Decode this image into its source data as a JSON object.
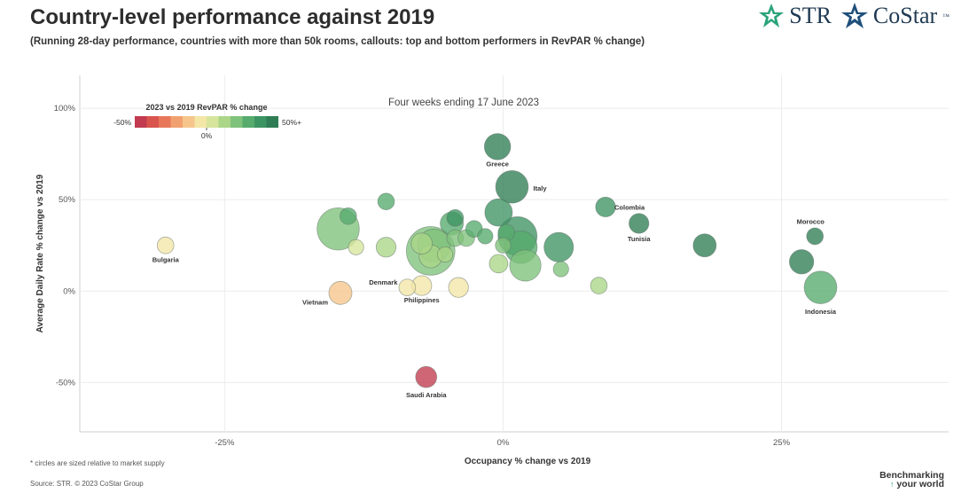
{
  "header": {
    "title": "Country-level performance against 2019",
    "subtitle": "(Running 28-day performance, countries with more than 50k rooms, callouts: top and bottom performers in RevPAR % change)"
  },
  "logos": {
    "str": "STR",
    "costar": "CoStar",
    "tm": "™"
  },
  "footer": {
    "footnote": "* circles are sized relative to market supply",
    "source": "Source: STR. © 2023 CoStar Group",
    "benchmarking_line1": "Benchmarking",
    "benchmarking_line2": "your world"
  },
  "legend": {
    "title": "2023 vs 2019 RevPAR % change",
    "min_label": "-50%",
    "max_label": "50%+",
    "mid_label": "0%",
    "colors": [
      "#c23b50",
      "#d9544d",
      "#e8775a",
      "#f1a170",
      "#f6c58c",
      "#f3e6a6",
      "#d6e59b",
      "#abd688",
      "#7fc27b",
      "#56ab6d",
      "#3d9463",
      "#2f7d54"
    ]
  },
  "chart_data": {
    "type": "scatter",
    "annotation": "Four weeks ending 17 June 2023",
    "xlabel": "Occupancy % change vs 2019",
    "ylabel": "Average Daily Rate % change vs 2019",
    "xlim": [
      -38,
      40
    ],
    "ylim": [
      -77,
      118
    ],
    "x_ticks": [
      -25,
      0,
      25
    ],
    "y_ticks": [
      100,
      50,
      0,
      -50
    ],
    "x_tick_labels": [
      "-25%",
      "0%",
      "25%"
    ],
    "y_tick_labels": [
      "100%",
      "50%",
      "0%",
      "-50%"
    ],
    "grid": true,
    "legend_position": "top-left",
    "points": [
      {
        "label": "Greece",
        "x": -0.5,
        "y": 79,
        "size": 3,
        "revpar": 45
      },
      {
        "label": "Italy",
        "x": 0.8,
        "y": 57,
        "size": 4,
        "revpar": 43
      },
      {
        "label": "Colombia",
        "x": 9.2,
        "y": 46,
        "size": 2,
        "revpar": 40
      },
      {
        "label": "Tunisia",
        "x": 12.2,
        "y": 37,
        "size": 2,
        "revpar": 42
      },
      {
        "label": "Morocco",
        "x": 28,
        "y": 30,
        "size": 1.5,
        "revpar": 45
      },
      {
        "label": "Indonesia",
        "x": 28.5,
        "y": 2,
        "size": 4,
        "revpar": 30
      },
      {
        "label": "Bulgaria",
        "x": -30.3,
        "y": 25,
        "size": 1.5,
        "revpar": -8
      },
      {
        "label": "Vietnam",
        "x": -14.6,
        "y": -1,
        "size": 2.5,
        "revpar": -14
      },
      {
        "label": "Denmark",
        "x": -8.6,
        "y": 2,
        "size": 1.5,
        "revpar": -5
      },
      {
        "label": "Philippines",
        "x": -7.3,
        "y": 3,
        "size": 2,
        "revpar": -4
      },
      {
        "label": "Saudi Arabia",
        "x": -6.9,
        "y": -47,
        "size": 2.2,
        "revpar": -48
      },
      {
        "label": "",
        "x": 18.1,
        "y": 25,
        "size": 2.5,
        "revpar": 48
      },
      {
        "label": "",
        "x": 26.8,
        "y": 16,
        "size": 2.7,
        "revpar": 46
      },
      {
        "label": "",
        "x": -14.8,
        "y": 34,
        "size": 5.5,
        "revpar": 22
      },
      {
        "label": "",
        "x": -13.9,
        "y": 41,
        "size": 1.5,
        "revpar": 25
      },
      {
        "label": "",
        "x": -13.2,
        "y": 24,
        "size": 1.3,
        "revpar": 8
      },
      {
        "label": "",
        "x": -10.5,
        "y": 49,
        "size": 1.5,
        "revpar": 32
      },
      {
        "label": "",
        "x": -10.5,
        "y": 24,
        "size": 2,
        "revpar": 12
      },
      {
        "label": "",
        "x": -7.3,
        "y": 26,
        "size": 2.2,
        "revpar": 16
      },
      {
        "label": "",
        "x": -6.5,
        "y": 22,
        "size": 6.5,
        "revpar": 18
      },
      {
        "label": "",
        "x": -6.2,
        "y": 25,
        "size": 4,
        "revpar": 20
      },
      {
        "label": "",
        "x": -6.5,
        "y": 19,
        "size": 2.5,
        "revpar": 13
      },
      {
        "label": "",
        "x": -5.2,
        "y": 20,
        "size": 1.3,
        "revpar": 15
      },
      {
        "label": "",
        "x": -4.6,
        "y": 37,
        "size": 2.5,
        "revpar": 31
      },
      {
        "label": "",
        "x": -4.3,
        "y": 40,
        "size": 1.5,
        "revpar": 35
      },
      {
        "label": "",
        "x": -4.3,
        "y": 29,
        "size": 1.5,
        "revpar": 22
      },
      {
        "label": "",
        "x": -4.0,
        "y": 2,
        "size": 2,
        "revpar": -2
      },
      {
        "label": "",
        "x": -3.3,
        "y": 29,
        "size": 1.5,
        "revpar": 24
      },
      {
        "label": "",
        "x": -2.6,
        "y": 34,
        "size": 1.5,
        "revpar": 32
      },
      {
        "label": "",
        "x": -1.6,
        "y": 30,
        "size": 1.3,
        "revpar": 28
      },
      {
        "label": "",
        "x": -0.4,
        "y": 43,
        "size": 3.2,
        "revpar": 38
      },
      {
        "label": "",
        "x": -0.4,
        "y": 15,
        "size": 1.8,
        "revpar": 12
      },
      {
        "label": "",
        "x": 0.0,
        "y": 25,
        "size": 1.3,
        "revpar": 24
      },
      {
        "label": "",
        "x": 0.3,
        "y": 32,
        "size": 1.5,
        "revpar": 30
      },
      {
        "label": "",
        "x": 1.3,
        "y": 30,
        "size": 5,
        "revpar": 37
      },
      {
        "label": "",
        "x": 1.6,
        "y": 24,
        "size": 4,
        "revpar": 31
      },
      {
        "label": "",
        "x": 2.0,
        "y": 14,
        "size": 3.8,
        "revpar": 20
      },
      {
        "label": "",
        "x": 5.0,
        "y": 24,
        "size": 3.5,
        "revpar": 38
      },
      {
        "label": "",
        "x": 5.2,
        "y": 12,
        "size": 1.3,
        "revpar": 18
      },
      {
        "label": "",
        "x": 8.6,
        "y": 3,
        "size": 1.5,
        "revpar": 12
      }
    ]
  }
}
